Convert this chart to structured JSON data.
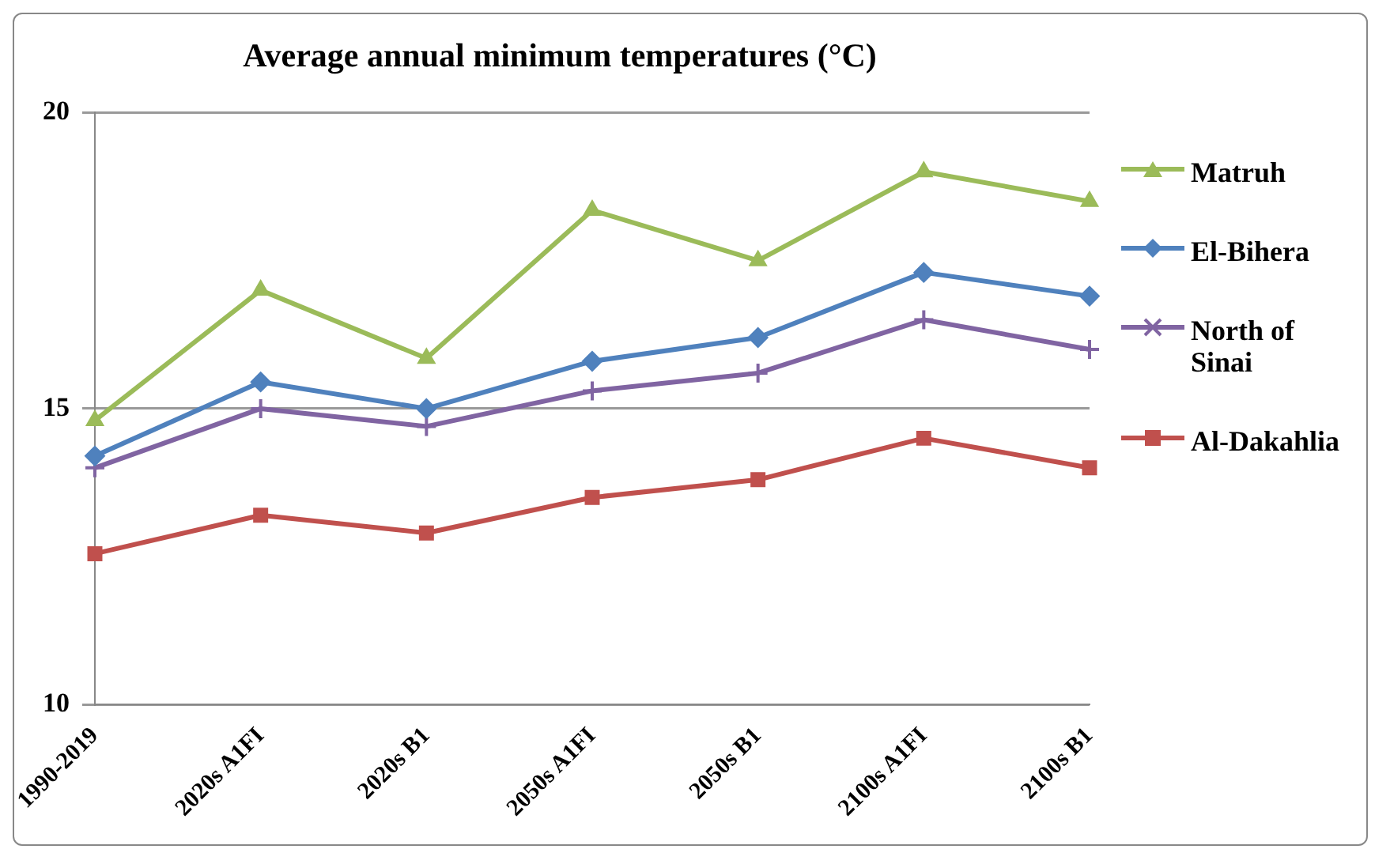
{
  "chart_data": {
    "type": "line",
    "title": "Average annual minimum temperatures (°C)",
    "categories": [
      "1990-2019",
      "2020s A1FI",
      "2020s B1",
      "2050s A1FI",
      "2050s B1",
      "2100s A1FI",
      "2100s B1"
    ],
    "series": [
      {
        "name": "Matruh",
        "color": "#9bbb59",
        "marker": "triangle",
        "values": [
          14.8,
          17.0,
          15.85,
          18.35,
          17.5,
          19.0,
          18.5
        ]
      },
      {
        "name": "El-Bihera",
        "color": "#4f81bd",
        "marker": "diamond",
        "values": [
          14.2,
          15.45,
          15.0,
          15.8,
          16.2,
          17.3,
          16.9
        ]
      },
      {
        "name": "North of Sinai",
        "color": "#8064a2",
        "marker": "cross",
        "values": [
          14.0,
          15.0,
          14.7,
          15.3,
          15.6,
          16.5,
          16.0
        ]
      },
      {
        "name": "Al-Dakahlia",
        "color": "#c0504d",
        "marker": "square",
        "values": [
          12.55,
          13.2,
          12.9,
          13.5,
          13.8,
          14.5,
          14.0
        ]
      }
    ],
    "ylim": [
      10,
      20
    ],
    "yticks": [
      10,
      15,
      20
    ],
    "grid": "y",
    "legend": "right",
    "line_style": "solid"
  }
}
